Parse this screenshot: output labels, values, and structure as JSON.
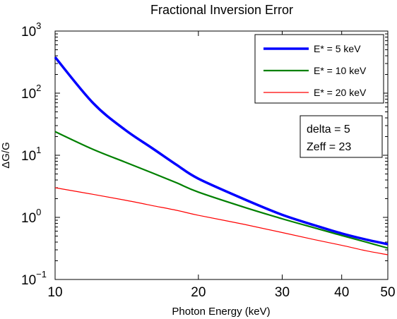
{
  "chart_data": {
    "type": "line",
    "title": "Fractional Inversion Error",
    "xlabel": "Photon Energy (keV)",
    "ylabel": "ΔG/G",
    "xscale": "log",
    "yscale": "log",
    "xlim": [
      10,
      50
    ],
    "ylim": [
      0.1,
      1000
    ],
    "x_ticks": [
      {
        "value": 10,
        "label": "10"
      },
      {
        "value": 20,
        "label": "20"
      },
      {
        "value": 30,
        "label": "30"
      },
      {
        "value": 40,
        "label": "40"
      },
      {
        "value": 50,
        "label": "50"
      }
    ],
    "y_ticks": [
      {
        "value": 0.1,
        "base": "10",
        "exp": "−1"
      },
      {
        "value": 1,
        "base": "10",
        "exp": "0"
      },
      {
        "value": 10,
        "base": "10",
        "exp": "1"
      },
      {
        "value": 100,
        "base": "10",
        "exp": "2"
      },
      {
        "value": 1000,
        "base": "10",
        "exp": "3"
      }
    ],
    "grid": false,
    "legend_position": "top-right",
    "annotation": [
      "delta = 5",
      "Zeff = 23"
    ],
    "x": [
      10,
      12,
      14,
      16,
      18,
      20,
      25,
      30,
      35,
      40,
      45,
      50
    ],
    "series": [
      {
        "name": "E* = 5 keV",
        "color": "#0000ff",
        "width": 3.5,
        "values": [
          380,
          70,
          26,
          13,
          7.0,
          4.2,
          1.95,
          1.1,
          0.75,
          0.55,
          0.44,
          0.37
        ]
      },
      {
        "name": "E* = 10 keV",
        "color": "#008000",
        "width": 2.2,
        "values": [
          24,
          12.5,
          7.8,
          5.2,
          3.6,
          2.55,
          1.45,
          0.95,
          0.68,
          0.51,
          0.4,
          0.32
        ]
      },
      {
        "name": "E* = 20 keV",
        "color": "#ff0000",
        "width": 1.2,
        "values": [
          3.0,
          2.35,
          1.9,
          1.55,
          1.3,
          1.08,
          0.77,
          0.57,
          0.44,
          0.355,
          0.29,
          0.25
        ]
      }
    ]
  }
}
